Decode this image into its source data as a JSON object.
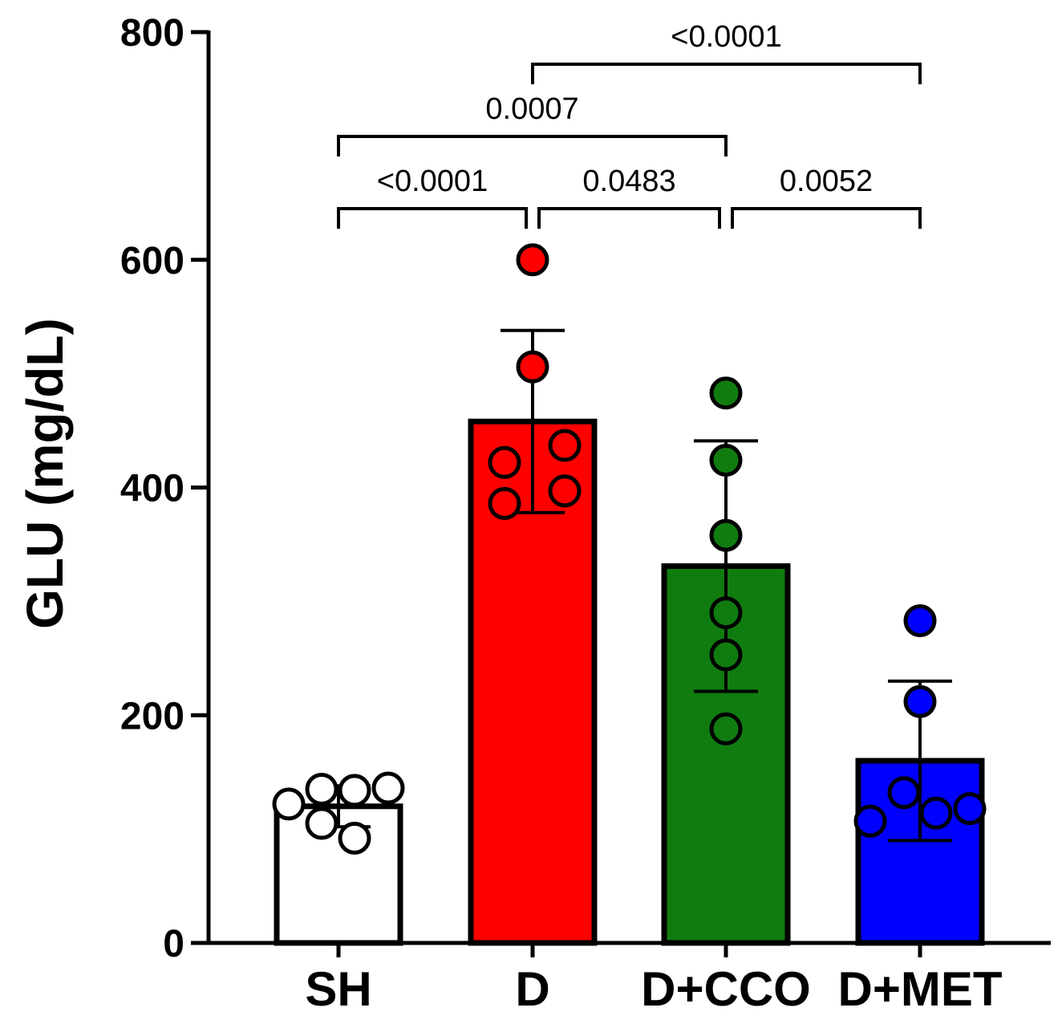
{
  "chart_data": {
    "type": "bar",
    "title": "",
    "xlabel": "",
    "ylabel": "GLU (mg/dL)",
    "ylim": [
      0,
      800
    ],
    "yticks": [
      "0",
      "200",
      "400",
      "600",
      "800"
    ],
    "ytick_values": [
      0,
      200,
      400,
      600,
      800
    ],
    "grid": false,
    "categories": [
      "SH",
      "D",
      "D+CCO",
      "D+MET"
    ],
    "values": [
      120,
      458,
      331,
      160
    ],
    "sd": [
      18,
      80,
      110,
      70
    ],
    "colors": [
      "#ffffff",
      "#ff0000",
      "#107c10",
      "#0000ff"
    ],
    "points": [
      [
        122,
        135,
        134,
        136,
        105,
        92
      ],
      [
        600,
        506,
        437,
        422,
        397,
        386
      ],
      [
        483,
        424,
        358,
        290,
        253,
        188
      ],
      [
        283,
        212,
        132,
        107,
        114,
        118
      ]
    ],
    "significance": [
      {
        "from": "SH",
        "to": "D",
        "label": "<0.0001"
      },
      {
        "from": "D",
        "to": "D+CCO",
        "label": "0.0483"
      },
      {
        "from": "D+CCO",
        "to": "D+MET",
        "label": "0.0052"
      },
      {
        "from": "SH",
        "to": "D+CCO",
        "label": "0.0007"
      },
      {
        "from": "D",
        "to": "D+MET",
        "label": "<0.0001"
      }
    ]
  }
}
